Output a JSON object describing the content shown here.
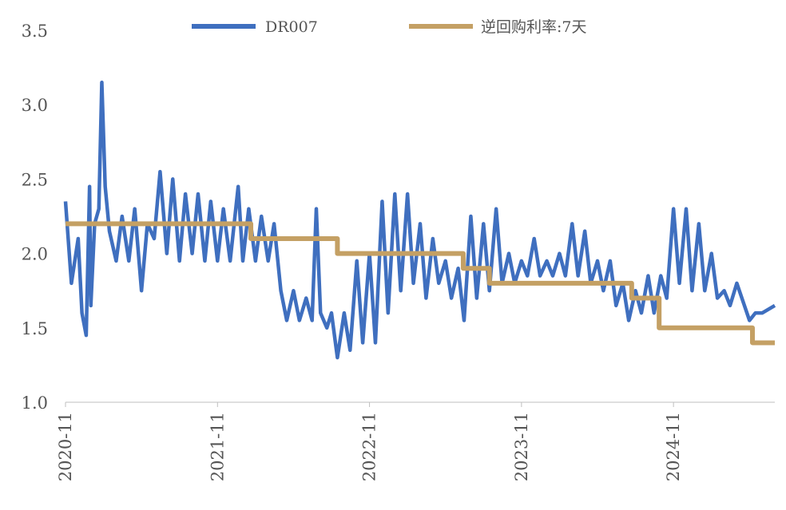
{
  "chart_data": {
    "type": "line",
    "title": "",
    "xlabel": "",
    "ylabel": "",
    "x_range": [
      "2020-11",
      "2025-07"
    ],
    "ylim": [
      1.0,
      3.5
    ],
    "yticks": [
      1.0,
      1.5,
      2.0,
      2.5,
      3.0,
      3.5
    ],
    "ytick_labels": [
      "1.0",
      "1.5",
      "2.0",
      "2.5",
      "3.0",
      "3.5"
    ],
    "xticks": [
      "2020-11",
      "2021-11",
      "2022-11",
      "2023-11",
      "2024-11"
    ],
    "grid": false,
    "legend_position": "top",
    "series": [
      {
        "name": "DR007",
        "color": "#3f6fbf",
        "style": "line",
        "points": [
          [
            "2020-11",
            2.35
          ],
          [
            "2020-11-15",
            1.8
          ],
          [
            "2020-12",
            2.1
          ],
          [
            "2020-12-10",
            1.6
          ],
          [
            "2020-12-20",
            1.45
          ],
          [
            "2020-12-28",
            2.45
          ],
          [
            "2021-01",
            1.65
          ],
          [
            "2021-01-10",
            2.2
          ],
          [
            "2021-01-20",
            2.3
          ],
          [
            "2021-01-27",
            3.15
          ],
          [
            "2021-02-05",
            2.45
          ],
          [
            "2021-02-15",
            2.15
          ],
          [
            "2021-03",
            1.95
          ],
          [
            "2021-03-15",
            2.25
          ],
          [
            "2021-04",
            1.95
          ],
          [
            "2021-04-15",
            2.3
          ],
          [
            "2021-05",
            1.75
          ],
          [
            "2021-05-15",
            2.2
          ],
          [
            "2021-06",
            2.1
          ],
          [
            "2021-06-15",
            2.55
          ],
          [
            "2021-07",
            2.0
          ],
          [
            "2021-07-15",
            2.5
          ],
          [
            "2021-08",
            1.95
          ],
          [
            "2021-08-15",
            2.4
          ],
          [
            "2021-09",
            2.0
          ],
          [
            "2021-09-15",
            2.4
          ],
          [
            "2021-10",
            1.95
          ],
          [
            "2021-10-15",
            2.35
          ],
          [
            "2021-11",
            1.95
          ],
          [
            "2021-11-15",
            2.3
          ],
          [
            "2021-12",
            1.95
          ],
          [
            "2021-12-20",
            2.45
          ],
          [
            "2022-01",
            1.95
          ],
          [
            "2022-01-15",
            2.3
          ],
          [
            "2022-02",
            1.95
          ],
          [
            "2022-02-15",
            2.25
          ],
          [
            "2022-03",
            1.95
          ],
          [
            "2022-03-15",
            2.2
          ],
          [
            "2022-04",
            1.75
          ],
          [
            "2022-04-15",
            1.55
          ],
          [
            "2022-05",
            1.75
          ],
          [
            "2022-05-15",
            1.55
          ],
          [
            "2022-06",
            1.7
          ],
          [
            "2022-06-15",
            1.55
          ],
          [
            "2022-06-25",
            2.3
          ],
          [
            "2022-07-05",
            1.6
          ],
          [
            "2022-07-20",
            1.5
          ],
          [
            "2022-08",
            1.6
          ],
          [
            "2022-08-15",
            1.3
          ],
          [
            "2022-09",
            1.6
          ],
          [
            "2022-09-15",
            1.35
          ],
          [
            "2022-10",
            1.95
          ],
          [
            "2022-10-15",
            1.4
          ],
          [
            "2022-11",
            2.0
          ],
          [
            "2022-11-15",
            1.4
          ],
          [
            "2022-12",
            2.35
          ],
          [
            "2022-12-15",
            1.6
          ],
          [
            "2023-01",
            2.4
          ],
          [
            "2023-01-15",
            1.75
          ],
          [
            "2023-02",
            2.4
          ],
          [
            "2023-02-15",
            1.8
          ],
          [
            "2023-03",
            2.2
          ],
          [
            "2023-03-15",
            1.7
          ],
          [
            "2023-04",
            2.1
          ],
          [
            "2023-04-15",
            1.8
          ],
          [
            "2023-05",
            1.95
          ],
          [
            "2023-05-15",
            1.7
          ],
          [
            "2023-06",
            1.9
          ],
          [
            "2023-06-15",
            1.55
          ],
          [
            "2023-07",
            2.25
          ],
          [
            "2023-07-15",
            1.7
          ],
          [
            "2023-08",
            2.2
          ],
          [
            "2023-08-15",
            1.75
          ],
          [
            "2023-09",
            2.3
          ],
          [
            "2023-09-15",
            1.8
          ],
          [
            "2023-10",
            2.0
          ],
          [
            "2023-10-15",
            1.8
          ],
          [
            "2023-11",
            1.95
          ],
          [
            "2023-11-15",
            1.85
          ],
          [
            "2023-12",
            2.1
          ],
          [
            "2023-12-15",
            1.85
          ],
          [
            "2024-01",
            1.95
          ],
          [
            "2024-01-15",
            1.85
          ],
          [
            "2024-02",
            2.0
          ],
          [
            "2024-02-15",
            1.85
          ],
          [
            "2024-03",
            2.2
          ],
          [
            "2024-03-15",
            1.85
          ],
          [
            "2024-04",
            2.15
          ],
          [
            "2024-04-15",
            1.8
          ],
          [
            "2024-05",
            1.95
          ],
          [
            "2024-05-15",
            1.75
          ],
          [
            "2024-06",
            1.95
          ],
          [
            "2024-06-15",
            1.65
          ],
          [
            "2024-07",
            1.8
          ],
          [
            "2024-07-15",
            1.55
          ],
          [
            "2024-08",
            1.75
          ],
          [
            "2024-08-15",
            1.6
          ],
          [
            "2024-09",
            1.85
          ],
          [
            "2024-09-15",
            1.6
          ],
          [
            "2024-10",
            1.85
          ],
          [
            "2024-10-15",
            1.7
          ],
          [
            "2024-11",
            2.3
          ],
          [
            "2024-11-15",
            1.8
          ],
          [
            "2024-12",
            2.3
          ],
          [
            "2024-12-15",
            1.75
          ],
          [
            "2025-01",
            2.2
          ],
          [
            "2025-01-15",
            1.75
          ],
          [
            "2025-02",
            2.0
          ],
          [
            "2025-02-15",
            1.7
          ],
          [
            "2025-03",
            1.75
          ],
          [
            "2025-03-15",
            1.65
          ],
          [
            "2025-04",
            1.8
          ],
          [
            "2025-05",
            1.55
          ],
          [
            "2025-05-15",
            1.6
          ],
          [
            "2025-06",
            1.6
          ],
          [
            "2025-07",
            1.65
          ]
        ]
      },
      {
        "name": "逆回购利率:7天",
        "color": "#c4a064",
        "style": "step",
        "points": [
          [
            "2020-11",
            2.2
          ],
          [
            "2022-01-20",
            2.1
          ],
          [
            "2022-08-15",
            2.0
          ],
          [
            "2023-06-13",
            1.9
          ],
          [
            "2023-08-15",
            1.8
          ],
          [
            "2024-07-22",
            1.7
          ],
          [
            "2024-09-27",
            1.5
          ],
          [
            "2025-05-08",
            1.4
          ],
          [
            "2025-07",
            1.4
          ]
        ]
      }
    ]
  }
}
